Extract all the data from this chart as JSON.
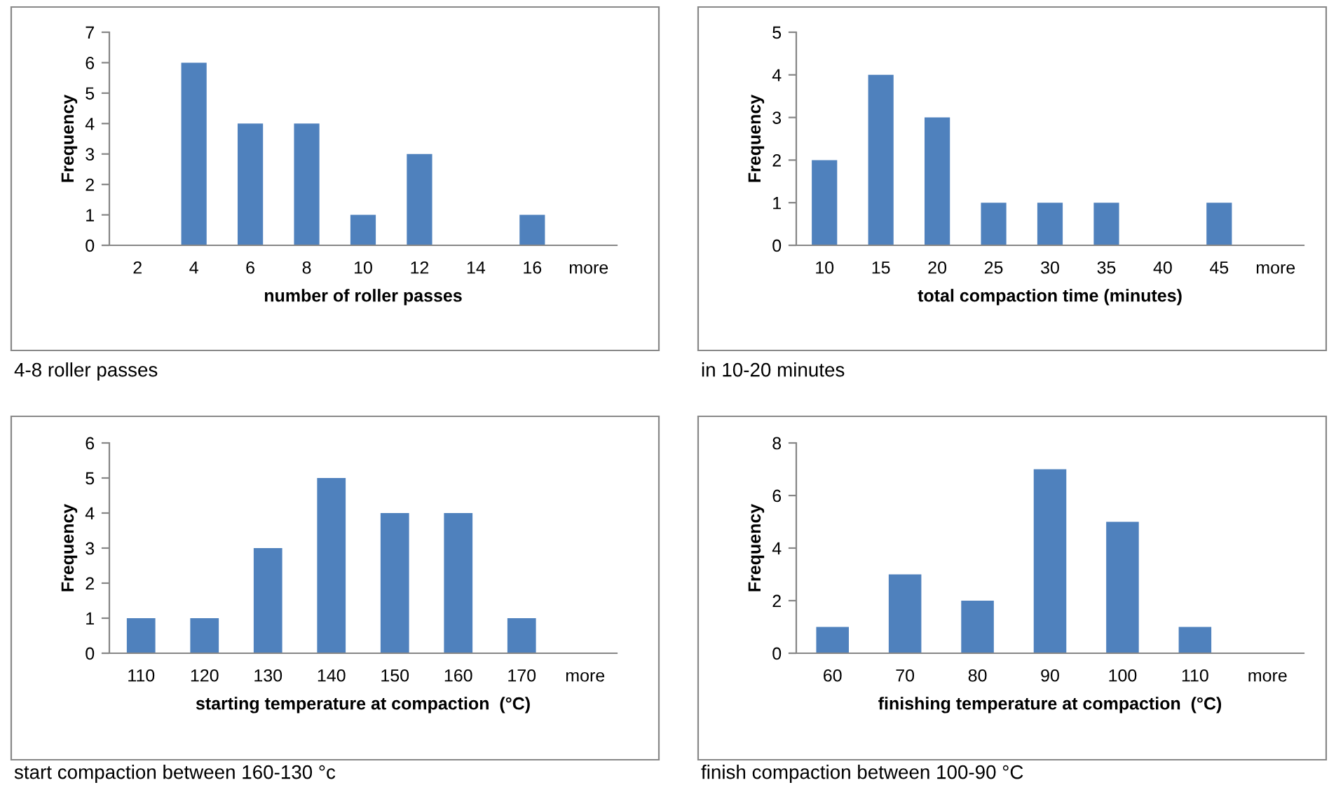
{
  "chart_data": [
    {
      "type": "bar",
      "xlabel": "number of roller passes",
      "ylabel": "Frequency",
      "categories": [
        "2",
        "4",
        "6",
        "8",
        "10",
        "12",
        "14",
        "16",
        "more"
      ],
      "values": [
        0,
        6,
        4,
        4,
        1,
        3,
        0,
        1,
        0
      ],
      "color": "#4f81bd",
      "ylim": [
        0,
        7
      ],
      "yticks": [
        0,
        1,
        2,
        3,
        4,
        5,
        6,
        7
      ],
      "grid": false,
      "legend": false,
      "annotations": [
        "4-8 roller passes"
      ]
    },
    {
      "type": "bar",
      "xlabel": "total compaction time (minutes)",
      "ylabel": "Frequency",
      "categories": [
        "10",
        "15",
        "20",
        "25",
        "30",
        "35",
        "40",
        "45",
        "more"
      ],
      "values": [
        2,
        4,
        3,
        1,
        1,
        1,
        0,
        1,
        0
      ],
      "color": "#4f81bd",
      "ylim": [
        0,
        5
      ],
      "yticks": [
        0,
        1,
        2,
        3,
        4,
        5
      ],
      "grid": false,
      "legend": false,
      "annotations": [
        "in 10-20 minutes"
      ]
    },
    {
      "type": "bar",
      "xlabel": "starting temperature at compaction  (°C)",
      "ylabel": "Frequency",
      "categories": [
        "110",
        "120",
        "130",
        "140",
        "150",
        "160",
        "170",
        "more"
      ],
      "values": [
        1,
        1,
        3,
        5,
        4,
        4,
        1,
        0
      ],
      "color": "#4f81bd",
      "ylim": [
        0,
        6
      ],
      "yticks": [
        0,
        1,
        2,
        3,
        4,
        5,
        6
      ],
      "grid": false,
      "legend": false,
      "annotations": [
        "start compaction between 160-130 °c"
      ]
    },
    {
      "type": "bar",
      "xlabel": "finishing temperature at compaction  (°C)",
      "ylabel": "Frequency",
      "categories": [
        "60",
        "70",
        "80",
        "90",
        "100",
        "110",
        "more"
      ],
      "values": [
        1,
        3,
        2,
        7,
        5,
        1,
        0
      ],
      "color": "#4f81bd",
      "ylim": [
        0,
        8
      ],
      "yticks": [
        0,
        2,
        4,
        6,
        8
      ],
      "grid": false,
      "legend": false,
      "annotations": [
        "finish compaction between 100-90 °C"
      ]
    }
  ]
}
